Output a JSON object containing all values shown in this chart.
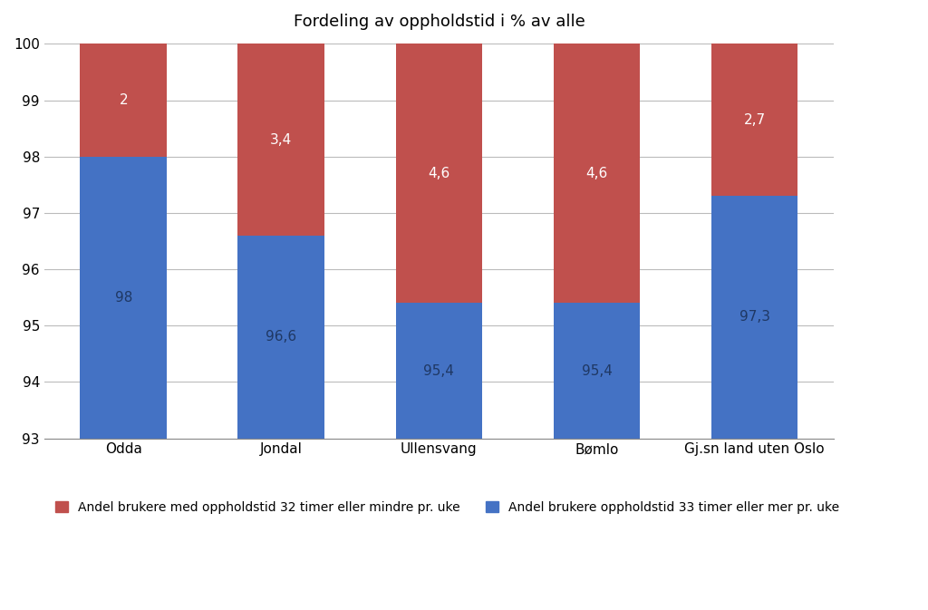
{
  "categories": [
    "Odda",
    "Jondal",
    "Ullensvang",
    "Bømlo",
    "Gj.sn land uten Oslo"
  ],
  "blue_values": [
    98.0,
    96.6,
    95.4,
    95.4,
    97.3
  ],
  "red_values": [
    2.0,
    3.4,
    4.6,
    4.6,
    2.7
  ],
  "blue_labels": [
    "98",
    "96,6",
    "95,4",
    "95,4",
    "97,3"
  ],
  "red_labels": [
    "2",
    "3,4",
    "4,6",
    "4,6",
    "2,7"
  ],
  "blue_color": "#4472C4",
  "red_color": "#C0504D",
  "title": "Fordeling av oppholdstid i % av alle",
  "ylim_min": 93,
  "ylim_max": 100,
  "yticks": [
    93,
    94,
    95,
    96,
    97,
    98,
    99,
    100
  ],
  "legend_red": "Andel brukere med oppholdstid 32 timer eller mindre pr. uke",
  "legend_blue": "Andel brukere oppholdstid 33 timer eller mer pr. uke",
  "bar_width": 0.55,
  "background_color": "#FFFFFF",
  "grid_color": "#BBBBBB",
  "blue_label_color": "#1F3864",
  "red_label_color": "#FFFFFF",
  "label_fontsize": 11,
  "title_fontsize": 13
}
